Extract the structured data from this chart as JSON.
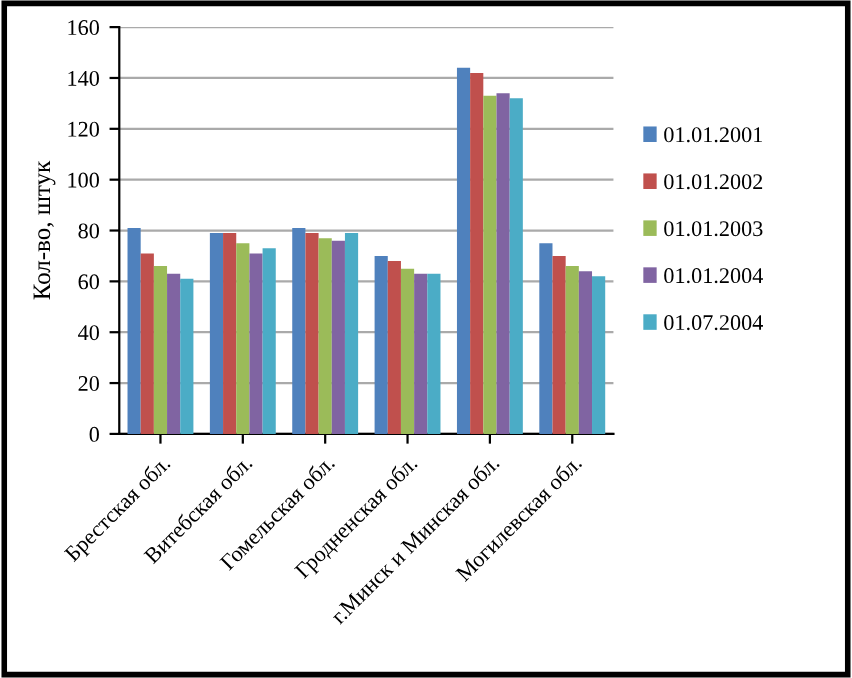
{
  "chart_data": {
    "type": "bar",
    "ylabel": "Кол-во, штук",
    "categories": [
      "Брестская обл.",
      "Витебская обл.",
      "Гомельская обл.",
      "Гродненская обл.",
      "г.Минск и Минская обл.",
      "Могилевская обл."
    ],
    "series": [
      {
        "name": "01.01.2001",
        "color": "#4f81bd",
        "values": [
          81,
          79,
          81,
          70,
          144,
          75
        ]
      },
      {
        "name": "01.01.2002",
        "color": "#c0504d",
        "values": [
          71,
          79,
          79,
          68,
          142,
          70
        ]
      },
      {
        "name": "01.01.2003",
        "color": "#9bbb59",
        "values": [
          66,
          75,
          77,
          65,
          133,
          66
        ]
      },
      {
        "name": "01.01.2004",
        "color": "#8064a2",
        "values": [
          63,
          71,
          76,
          63,
          134,
          64
        ]
      },
      {
        "name": "01.07.2004",
        "color": "#4bacc6",
        "values": [
          61,
          73,
          79,
          63,
          132,
          62
        ]
      }
    ],
    "ylim": [
      0,
      160
    ],
    "yticks": [
      0,
      20,
      40,
      60,
      80,
      100,
      120,
      140,
      160
    ],
    "grid": "y",
    "legend": "right"
  }
}
